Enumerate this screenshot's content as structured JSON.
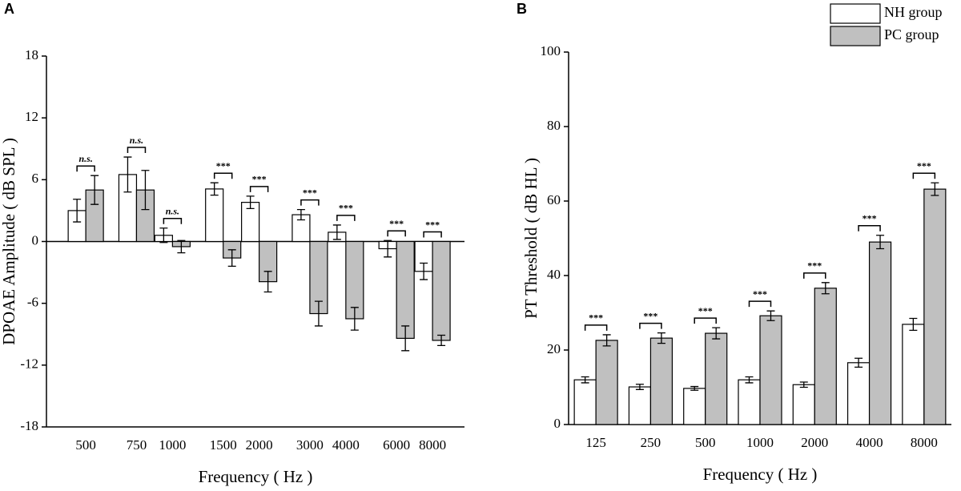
{
  "chart_data": [
    {
      "type": "bar",
      "panel": "A",
      "xscale": "log",
      "x": [
        500,
        750,
        1000,
        1500,
        2000,
        3000,
        4000,
        6000,
        8000
      ],
      "xlim": [
        365,
        10330
      ],
      "xlabel": "Frequency ( Hz )",
      "ylabel": "DPOAE Amplitude ( dB SPL )",
      "ylim": [
        -18,
        18
      ],
      "yticks": [
        -18,
        -12,
        -6,
        0,
        6,
        12,
        18
      ],
      "series": [
        {
          "color": "#ffffff",
          "values": [
            3.0,
            6.5,
            0.6,
            5.1,
            3.8,
            2.6,
            0.9,
            -0.7,
            -2.9
          ],
          "errors": [
            1.1,
            1.7,
            0.7,
            0.6,
            0.6,
            0.5,
            0.7,
            0.8,
            0.8
          ]
        },
        {
          "color": "#c0c0c0",
          "values": [
            5.0,
            5.0,
            -0.5,
            -1.6,
            -3.9,
            -7.0,
            -7.5,
            -9.4,
            -9.6
          ],
          "errors": [
            1.4,
            1.9,
            0.6,
            0.8,
            1.0,
            1.2,
            1.1,
            1.2,
            0.5
          ]
        }
      ],
      "significance": [
        "n.s.",
        "n.s.",
        "n.s.",
        "***",
        "***",
        "***",
        "***",
        "***",
        "***"
      ]
    },
    {
      "type": "bar",
      "panel": "B",
      "categories": [
        "125",
        "250",
        "500",
        "1000",
        "2000",
        "4000",
        "8000"
      ],
      "xlabel": "Frequency ( Hz )",
      "ylabel": "PT Threshold ( dB HL )",
      "ylim": [
        0,
        100
      ],
      "yticks": [
        0,
        20,
        40,
        60,
        80,
        100
      ],
      "legend": "top-right",
      "series": [
        {
          "name": "NH group",
          "color": "#ffffff",
          "values": [
            12.0,
            10.1,
            9.7,
            12.0,
            10.7,
            16.6,
            26.9
          ],
          "errors": [
            0.8,
            0.7,
            0.5,
            0.8,
            0.7,
            1.2,
            1.6
          ]
        },
        {
          "name": "PC group",
          "color": "#c0c0c0",
          "values": [
            22.6,
            23.2,
            24.5,
            29.2,
            36.6,
            49.0,
            63.2
          ],
          "errors": [
            1.5,
            1.4,
            1.5,
            1.3,
            1.5,
            1.8,
            1.7
          ]
        }
      ],
      "significance": [
        "***",
        "***",
        "***",
        "***",
        "***",
        "***",
        "***"
      ]
    }
  ]
}
